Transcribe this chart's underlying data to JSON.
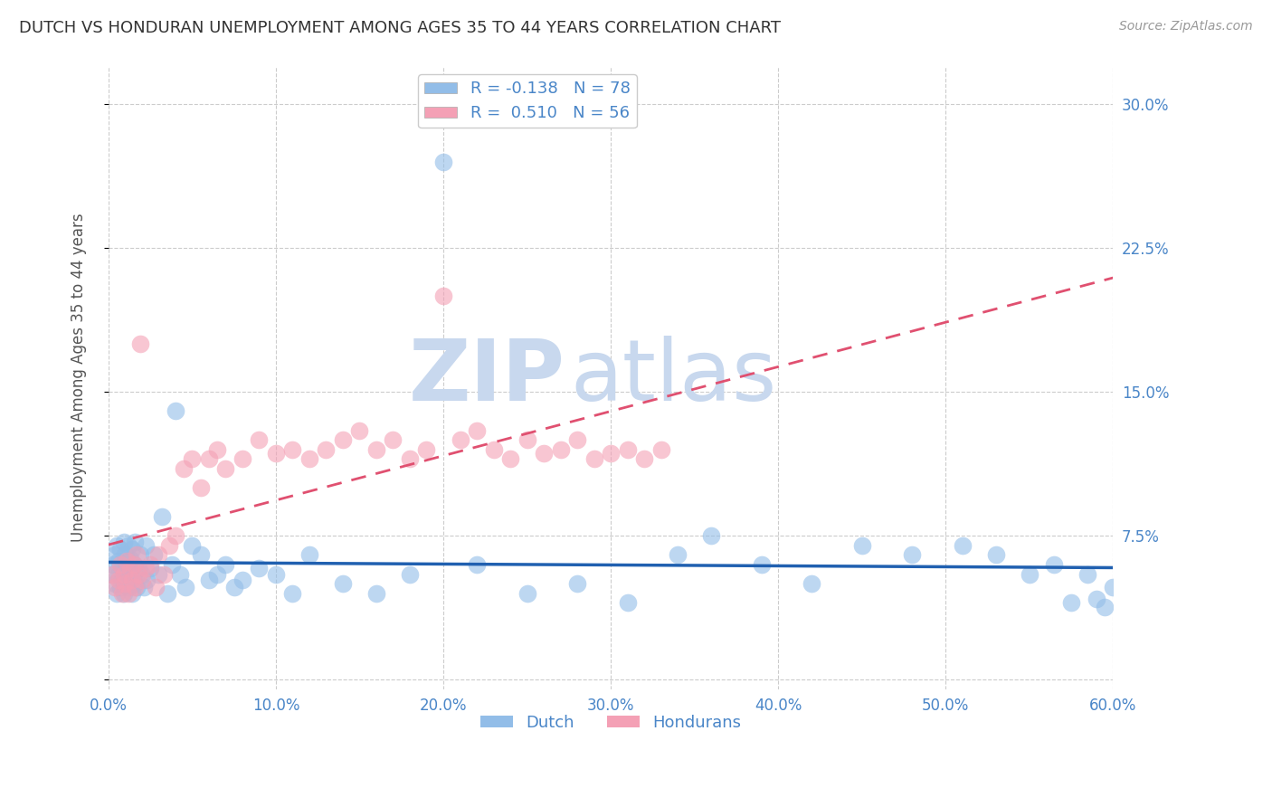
{
  "title": "DUTCH VS HONDURAN UNEMPLOYMENT AMONG AGES 35 TO 44 YEARS CORRELATION CHART",
  "source": "Source: ZipAtlas.com",
  "ylabel": "Unemployment Among Ages 35 to 44 years",
  "xlim": [
    0.0,
    0.6
  ],
  "ylim": [
    -0.005,
    0.32
  ],
  "yticks": [
    0.0,
    0.075,
    0.15,
    0.225,
    0.3
  ],
  "ytick_labels": [
    "",
    "7.5%",
    "15.0%",
    "22.5%",
    "30.0%"
  ],
  "xticks": [
    0.0,
    0.1,
    0.2,
    0.3,
    0.4,
    0.5,
    0.6
  ],
  "xtick_labels": [
    "0.0%",
    "10.0%",
    "20.0%",
    "30.0%",
    "40.0%",
    "50.0%",
    "60.0%"
  ],
  "dutch_R": -0.138,
  "dutch_N": 78,
  "honduran_R": 0.51,
  "honduran_N": 56,
  "dutch_color": "#92bde8",
  "honduran_color": "#f4a0b5",
  "dutch_line_color": "#2060b0",
  "honduran_line_color": "#e05070",
  "background_color": "#ffffff",
  "grid_color": "#cccccc",
  "title_color": "#333333",
  "axis_label_color": "#4a86c8",
  "watermark_zip": "ZIP",
  "watermark_atlas": "atlas",
  "watermark_color": "#c8d8ee",
  "legend_dutch_label": "Dutch",
  "legend_honduran_label": "Hondurans",
  "dutch_x": [
    0.002,
    0.003,
    0.004,
    0.004,
    0.005,
    0.005,
    0.006,
    0.006,
    0.007,
    0.007,
    0.008,
    0.008,
    0.009,
    0.009,
    0.01,
    0.01,
    0.011,
    0.011,
    0.012,
    0.012,
    0.013,
    0.013,
    0.014,
    0.014,
    0.015,
    0.015,
    0.016,
    0.016,
    0.017,
    0.018,
    0.019,
    0.02,
    0.021,
    0.022,
    0.023,
    0.025,
    0.027,
    0.03,
    0.032,
    0.035,
    0.038,
    0.04,
    0.043,
    0.046,
    0.05,
    0.055,
    0.06,
    0.065,
    0.07,
    0.075,
    0.08,
    0.09,
    0.1,
    0.11,
    0.12,
    0.14,
    0.16,
    0.18,
    0.2,
    0.22,
    0.25,
    0.28,
    0.31,
    0.34,
    0.36,
    0.39,
    0.42,
    0.45,
    0.48,
    0.51,
    0.53,
    0.55,
    0.565,
    0.575,
    0.585,
    0.59,
    0.595,
    0.6
  ],
  "dutch_y": [
    0.055,
    0.06,
    0.05,
    0.065,
    0.045,
    0.07,
    0.055,
    0.062,
    0.048,
    0.068,
    0.052,
    0.058,
    0.045,
    0.072,
    0.05,
    0.065,
    0.055,
    0.06,
    0.048,
    0.07,
    0.052,
    0.063,
    0.045,
    0.068,
    0.055,
    0.06,
    0.05,
    0.072,
    0.048,
    0.058,
    0.065,
    0.055,
    0.048,
    0.07,
    0.052,
    0.058,
    0.065,
    0.055,
    0.085,
    0.045,
    0.06,
    0.14,
    0.055,
    0.048,
    0.07,
    0.065,
    0.052,
    0.055,
    0.06,
    0.048,
    0.052,
    0.058,
    0.055,
    0.045,
    0.065,
    0.05,
    0.045,
    0.055,
    0.27,
    0.06,
    0.045,
    0.05,
    0.04,
    0.065,
    0.075,
    0.06,
    0.05,
    0.07,
    0.065,
    0.07,
    0.065,
    0.055,
    0.06,
    0.04,
    0.055,
    0.042,
    0.038,
    0.048
  ],
  "honduran_x": [
    0.002,
    0.004,
    0.006,
    0.007,
    0.008,
    0.009,
    0.01,
    0.011,
    0.012,
    0.013,
    0.014,
    0.015,
    0.016,
    0.017,
    0.018,
    0.019,
    0.02,
    0.022,
    0.025,
    0.028,
    0.03,
    0.033,
    0.036,
    0.04,
    0.045,
    0.05,
    0.055,
    0.06,
    0.065,
    0.07,
    0.08,
    0.09,
    0.1,
    0.11,
    0.12,
    0.13,
    0.14,
    0.15,
    0.16,
    0.17,
    0.18,
    0.19,
    0.2,
    0.21,
    0.22,
    0.23,
    0.24,
    0.25,
    0.26,
    0.27,
    0.28,
    0.29,
    0.3,
    0.31,
    0.32,
    0.33
  ],
  "honduran_y": [
    0.055,
    0.048,
    0.052,
    0.06,
    0.045,
    0.055,
    0.05,
    0.062,
    0.045,
    0.058,
    0.052,
    0.06,
    0.048,
    0.065,
    0.055,
    0.175,
    0.052,
    0.058,
    0.06,
    0.048,
    0.065,
    0.055,
    0.07,
    0.075,
    0.11,
    0.115,
    0.1,
    0.115,
    0.12,
    0.11,
    0.115,
    0.125,
    0.118,
    0.12,
    0.115,
    0.12,
    0.125,
    0.13,
    0.12,
    0.125,
    0.115,
    0.12,
    0.2,
    0.125,
    0.13,
    0.12,
    0.115,
    0.125,
    0.118,
    0.12,
    0.125,
    0.115,
    0.118,
    0.12,
    0.115,
    0.12
  ]
}
